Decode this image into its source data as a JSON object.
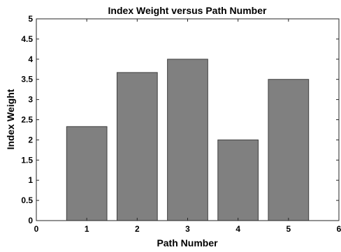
{
  "chart_data": {
    "type": "bar",
    "title": "Index Weight versus Path Number",
    "xlabel": "Path Number",
    "ylabel": "Index Weight",
    "x": [
      1,
      2,
      3,
      4,
      5
    ],
    "values": [
      2.33,
      3.67,
      4.0,
      2.0,
      3.5
    ],
    "xlim": [
      0,
      6
    ],
    "ylim": [
      0,
      5
    ],
    "xticks": [
      "0",
      "1",
      "2",
      "3",
      "4",
      "5",
      "6"
    ],
    "yticks": [
      "0",
      "0.5",
      "1",
      "1.5",
      "2",
      "2.5",
      "3",
      "3.5",
      "4",
      "4.5",
      "5"
    ],
    "grid": false,
    "legend": "none",
    "bar_color": "#808080",
    "bar_edge_color": "#404040"
  }
}
